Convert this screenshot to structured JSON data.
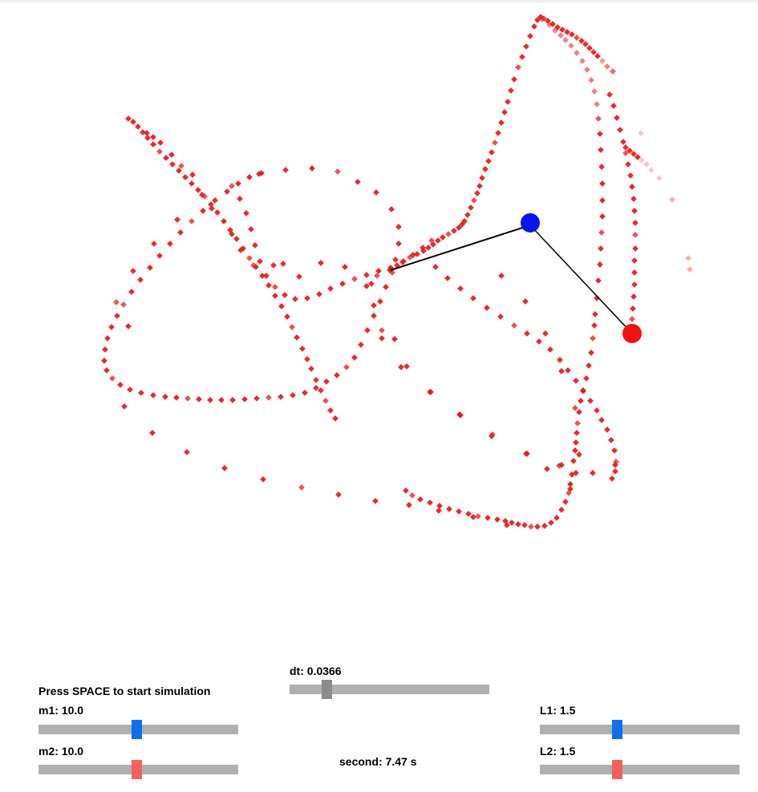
{
  "instructions": "Press SPACE to start simulation",
  "colors": {
    "trail": "#e8191b",
    "bob1": "#0a14f0",
    "bob2": "#f51010",
    "rod": "#000000",
    "track": "#b0b0b0",
    "thumb_blue": "#0f6ff0",
    "thumb_red": "#f26060",
    "thumb_gray": "#8c8c8c"
  },
  "sliders": {
    "m1": {
      "label": "m1: 10.0",
      "fraction": 0.49
    },
    "m2": {
      "label": "m2: 10.0",
      "fraction": 0.49
    },
    "dt": {
      "label": "dt: 0.0366",
      "fraction": 0.17
    },
    "L1": {
      "label": "L1: 1.5",
      "fraction": 0.38
    },
    "L2": {
      "label": "L2: 1.5",
      "fraction": 0.38
    }
  },
  "readout": {
    "label": "second: 7.47 s"
  }
}
